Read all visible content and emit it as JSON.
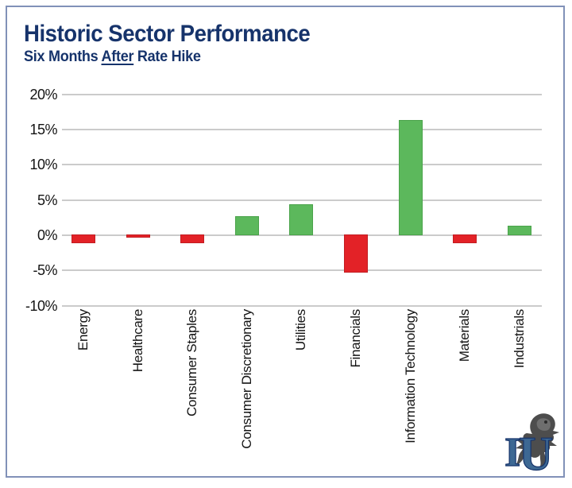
{
  "header": {
    "title": "Historic Sector Performance",
    "subtitle": {
      "prefix": "Six Months ",
      "underlined": "After",
      "suffix": " Rate Hike"
    }
  },
  "chart_data": {
    "type": "bar",
    "title": "Historic Sector Performance",
    "subtitle": "Six Months After Rate Hike",
    "categories": [
      "Energy",
      "Healthcare",
      "Consumer Staples",
      "Consumer Discretionary",
      "Utilities",
      "Financials",
      "Information Technology",
      "Materials",
      "Industrials"
    ],
    "values": [
      -1.2,
      -0.4,
      -1.2,
      2.7,
      4.4,
      -5.4,
      16.4,
      -1.2,
      1.3
    ],
    "xlabel": "",
    "ylabel": "",
    "ylim": [
      -10,
      20
    ],
    "ytick_step": 5,
    "ytick_labels": [
      "20%",
      "15%",
      "10%",
      "5%",
      "0%",
      "-5%",
      "-10%"
    ],
    "grid": true,
    "legend": false,
    "positive_color": "#5cb85c",
    "positive_border": "#4aa34a",
    "negative_color": "#e32227",
    "negative_border": "#c21d22"
  },
  "branding": {
    "logo_letters": "IU"
  },
  "colors": {
    "navy": "#16336b",
    "card_border": "#8191b8",
    "gridline": "#cbcbcb",
    "label_text": "#141414"
  }
}
